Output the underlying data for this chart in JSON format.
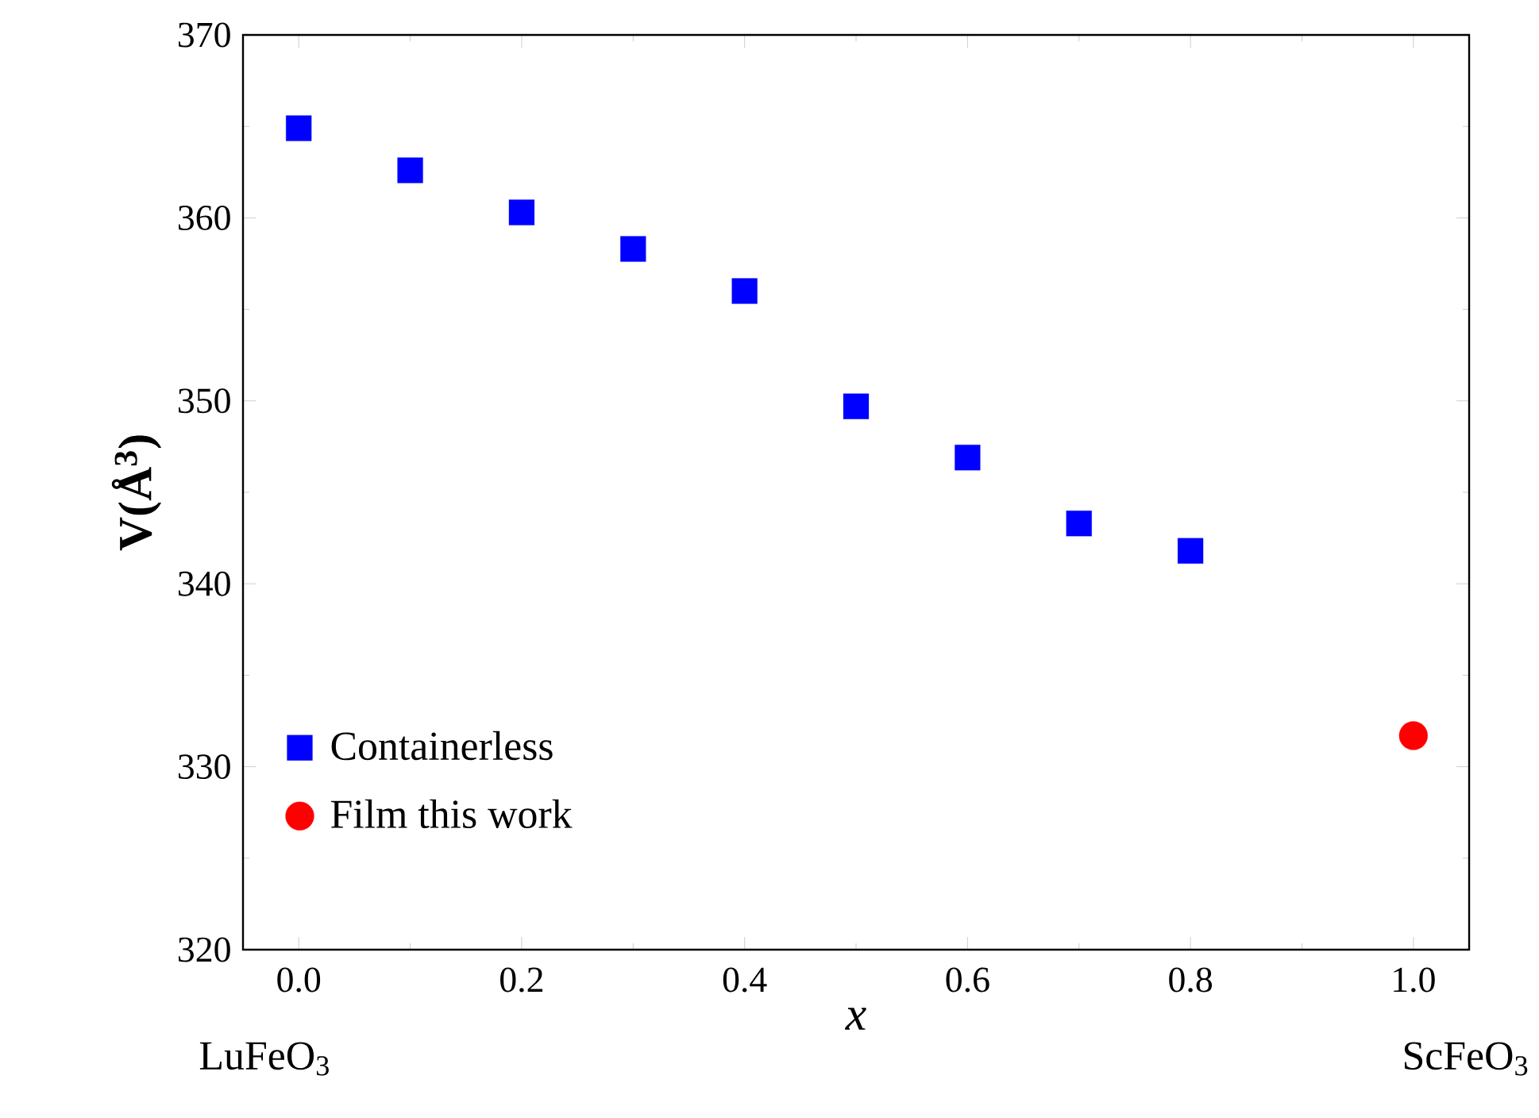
{
  "chart_data": {
    "type": "scatter",
    "xlabel": "x",
    "ylabel": "V(Å$^{3}$)",
    "xlim": [
      -0.05,
      1.05
    ],
    "ylim": [
      320,
      370
    ],
    "xticks": [
      {
        "value": 0,
        "label": "0.0"
      },
      {
        "value": 0.2,
        "label": "0.2"
      },
      {
        "value": 0.4,
        "label": "0.4"
      },
      {
        "value": 0.6,
        "label": "0.6"
      },
      {
        "value": 0.8,
        "label": "0.8"
      },
      {
        "value": 1,
        "label": "1.0"
      }
    ],
    "yticks": [
      320,
      330,
      340,
      350,
      360,
      370
    ],
    "series": [
      {
        "name": "Containerless",
        "color": "#0000ff",
        "marker": "square",
        "x": [
          0,
          0.1,
          0.2,
          0.3,
          0.4,
          0.5,
          0.6,
          0.7,
          0.8
        ],
        "values": [
          364.9,
          362.6,
          360.3,
          358.3,
          356.0,
          349.7,
          346.9,
          343.3,
          341.8
        ]
      },
      {
        "name": "Film this work",
        "color": "#ff0000",
        "marker": "circle",
        "x": [
          1
        ],
        "values": [
          331.7
        ]
      }
    ],
    "annotations": [
      "LuFeO$_{3}$",
      "ScFeO$_{3}$"
    ],
    "legend": "bottom left",
    "grid": false
  }
}
